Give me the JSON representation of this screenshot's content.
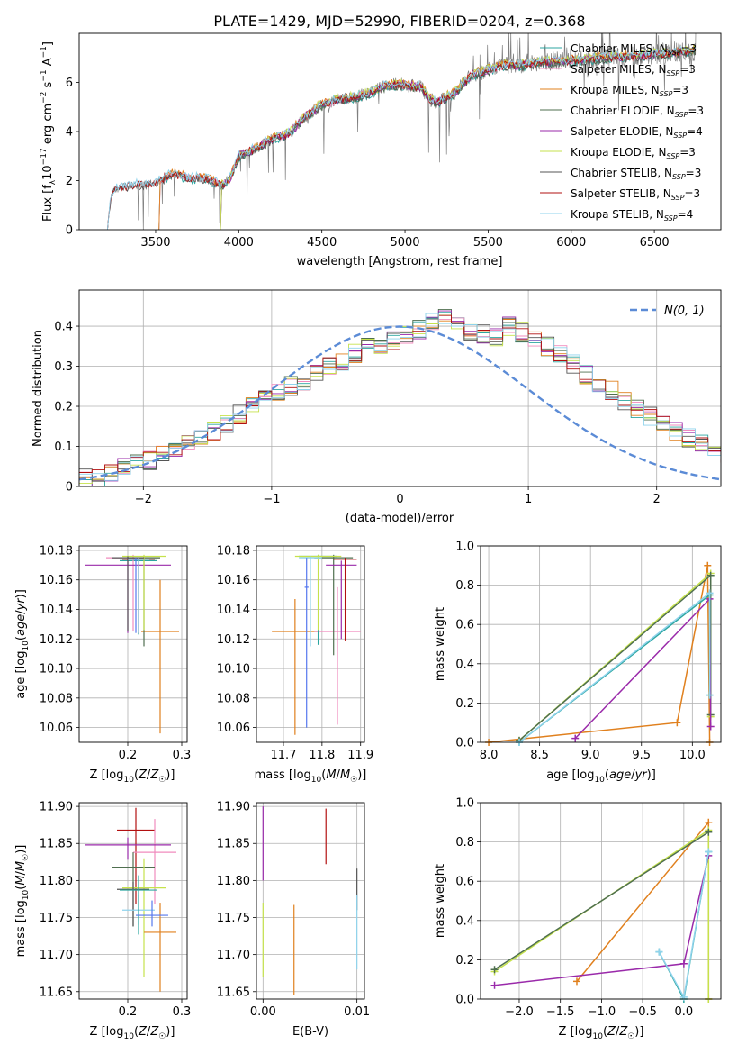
{
  "colors": {
    "Chabrier MILES": "#2ca6a0",
    "Salpeter MILES": "#f08bbd",
    "Kroupa MILES": "#e0801e",
    "Chabrier ELODIE": "#4f6f4f",
    "Salpeter ELODIE": "#9a2aaa",
    "Kroupa ELODIE": "#c6e24c",
    "Chabrier STELIB": "#555555",
    "Salpeter STELIB": "#b21010",
    "Kroupa STELIB": "#8fd3ec",
    "data": "#7f7f7f",
    "normal": "#5b8bd6",
    "orange_line": "#dd7733",
    "blue_extra": "#5577ee"
  },
  "chart_data": [
    {
      "type": "line",
      "title": "PLATE=1429, MJD=52990, FIBERID=0204, z=0.368",
      "xlabel": "wavelength [Angstrom, rest frame]",
      "ylabel": "Flux [f_λ 10^-17 erg cm^-2 s^-1 A^-1]",
      "xlim": [
        3040,
        6900
      ],
      "ylim": [
        0,
        8
      ],
      "xticks": [
        3500,
        4000,
        4500,
        5000,
        5500,
        6000,
        6500
      ],
      "yticks": [
        0,
        2,
        4,
        6
      ],
      "legend": "top-right",
      "legend_entries": [
        {
          "name": "Chabrier MILES",
          "nssp": "3"
        },
        {
          "name": "Salpeter MILES",
          "nssp": "3"
        },
        {
          "name": "Kroupa MILES",
          "nssp": "3"
        },
        {
          "name": "Chabrier ELODIE",
          "nssp": "3"
        },
        {
          "name": "Salpeter ELODIE",
          "nssp": "4"
        },
        {
          "name": "Kroupa ELODIE",
          "nssp": "3"
        },
        {
          "name": "Chabrier STELIB",
          "nssp": "3"
        },
        {
          "name": "Salpeter STELIB",
          "nssp": "3"
        },
        {
          "name": "Kroupa STELIB",
          "nssp": "4"
        }
      ],
      "model_start": {
        "Chabrier MILES": 3520,
        "Salpeter MILES": 3520,
        "Kroupa MILES": 3520,
        "Chabrier ELODIE": 3890,
        "Salpeter ELODIE": 3890,
        "Kroupa ELODIE": 3890,
        "Chabrier STELIB": 3210,
        "Salpeter STELIB": 3210,
        "Kroupa STELIB": 3210
      },
      "continuum": [
        [
          3210,
          0
        ],
        [
          3230,
          1.3
        ],
        [
          3250,
          1.6
        ],
        [
          3300,
          1.75
        ],
        [
          3400,
          1.85
        ],
        [
          3500,
          1.9
        ],
        [
          3600,
          2.3
        ],
        [
          3700,
          2.1
        ],
        [
          3800,
          2.1
        ],
        [
          3900,
          1.8
        ],
        [
          3950,
          2.1
        ],
        [
          4000,
          3.0
        ],
        [
          4100,
          3.3
        ],
        [
          4200,
          3.7
        ],
        [
          4300,
          3.9
        ],
        [
          4400,
          4.6
        ],
        [
          4500,
          5.1
        ],
        [
          4600,
          5.3
        ],
        [
          4700,
          5.4
        ],
        [
          4800,
          5.6
        ],
        [
          4900,
          5.9
        ],
        [
          5000,
          5.9
        ],
        [
          5100,
          5.8
        ],
        [
          5150,
          5.3
        ],
        [
          5200,
          5.2
        ],
        [
          5300,
          5.6
        ],
        [
          5400,
          6.3
        ],
        [
          5500,
          6.5
        ],
        [
          5600,
          6.7
        ],
        [
          5700,
          6.7
        ],
        [
          5800,
          6.8
        ],
        [
          6000,
          6.9
        ],
        [
          6200,
          7.0
        ],
        [
          6400,
          7.1
        ],
        [
          6600,
          7.2
        ],
        [
          6750,
          7.3
        ]
      ]
    },
    {
      "type": "line",
      "xlabel": "(data-model)/error",
      "ylabel": "Normed distribution",
      "xlim": [
        -2.5,
        2.5
      ],
      "ylim": [
        0,
        0.49
      ],
      "xticks": [
        -2,
        -1,
        0,
        1,
        2
      ],
      "yticks": [
        0.0,
        0.1,
        0.2,
        0.3,
        0.4
      ],
      "legend": "upper right",
      "normal_label": "N(0, 1)",
      "hist_mean": [
        0.02,
        0.025,
        0.035,
        0.045,
        0.055,
        0.065,
        0.08,
        0.095,
        0.11,
        0.125,
        0.14,
        0.16,
        0.18,
        0.2,
        0.215,
        0.23,
        0.25,
        0.265,
        0.285,
        0.3,
        0.315,
        0.33,
        0.345,
        0.355,
        0.365,
        0.375,
        0.39,
        0.41,
        0.43,
        0.415,
        0.39,
        0.38,
        0.37,
        0.4,
        0.385,
        0.37,
        0.35,
        0.33,
        0.305,
        0.28,
        0.26,
        0.24,
        0.215,
        0.195,
        0.175,
        0.155,
        0.135,
        0.12,
        0.105,
        0.09,
        0.075,
        0.065,
        0.055,
        0.045,
        0.035,
        0.03,
        0.025
      ],
      "bin_start": -2.5,
      "bin_width": 0.1
    },
    {
      "type": "scatter",
      "xlabel": "Z [log10(Z/Z☉)]",
      "ylabel": "age [log10(age/yr)]",
      "xlim": [
        0.11,
        0.31
      ],
      "ylim": [
        10.05,
        10.183
      ],
      "xticks": [
        0.2,
        0.3
      ],
      "xtick_labels": [
        "0.2",
        "0.3"
      ],
      "yticks": [
        10.06,
        10.08,
        10.1,
        10.12,
        10.14,
        10.16,
        10.18
      ],
      "ytick_labels": [
        "10.06",
        "10.08",
        "10.10",
        "10.12",
        "10.14",
        "10.16",
        "10.18"
      ],
      "points": [
        {
          "series": "Chabrier MILES",
          "x": 0.22,
          "y": 10.173,
          "xerr": 0.035,
          "yerr": [
            0.05,
            0.002
          ]
        },
        {
          "series": "Salpeter MILES",
          "x": 0.21,
          "y": 10.175,
          "xerr": 0.05,
          "yerr": [
            0.05,
            0.002
          ]
        },
        {
          "series": "Kroupa MILES",
          "x": 0.26,
          "y": 10.125,
          "xerr": 0.035,
          "yerr": [
            0.069,
            0.035
          ]
        },
        {
          "series": "Chabrier ELODIE",
          "x": 0.23,
          "y": 10.175,
          "xerr": 0.03,
          "yerr": [
            0.06,
            0.001
          ]
        },
        {
          "series": "Salpeter ELODIE",
          "x": 0.2,
          "y": 10.17,
          "xerr": 0.08,
          "yerr": [
            0.046,
            0.006
          ]
        },
        {
          "series": "Kroupa ELODIE",
          "x": 0.23,
          "y": 10.176,
          "xerr": 0.04,
          "yerr": [
            0.05,
            0.001
          ]
        },
        {
          "series": "Chabrier STELIB",
          "x": 0.2,
          "y": 10.175,
          "xerr": 0.03,
          "yerr": [
            0.05,
            0.001
          ]
        },
        {
          "series": "Salpeter STELIB",
          "x": 0.22,
          "y": 10.174,
          "xerr": 0.03,
          "yerr": [
            0.05,
            0.001
          ]
        },
        {
          "series": "Kroupa STELIB",
          "x": 0.22,
          "y": 10.174,
          "xerr": 0.02,
          "yerr": [
            0.05,
            0.001
          ]
        },
        {
          "series": "blue_extra",
          "x": 0.215,
          "y": 10.174,
          "xerr": 0.005,
          "yerr": [
            0.05,
            0.001
          ]
        }
      ]
    },
    {
      "type": "scatter",
      "xlabel": "mass [log10(M/M☉)]",
      "xlim": [
        11.63,
        11.91
      ],
      "ylim": [
        10.05,
        10.183
      ],
      "xticks": [
        11.7,
        11.8,
        11.9
      ],
      "xtick_labels": [
        "11.7",
        "11.8",
        "11.9"
      ],
      "yticks": [
        10.06,
        10.08,
        10.1,
        10.12,
        10.14,
        10.16,
        10.18
      ],
      "ytick_labels": [
        "10.06",
        "10.08",
        "10.10",
        "10.12",
        "10.14",
        "10.16",
        "10.18"
      ],
      "points": [
        {
          "series": "Kroupa MILES",
          "x": 11.73,
          "y": 10.125,
          "xerr": 0.06,
          "yerr": [
            0.07,
            0.022
          ]
        },
        {
          "series": "Salpeter MILES",
          "x": 11.84,
          "y": 10.125,
          "xerr": 0.06,
          "yerr": [
            0.063,
            0.03
          ]
        },
        {
          "series": "Chabrier MILES",
          "x": 11.79,
          "y": 10.176,
          "xerr": 0.05,
          "yerr": [
            0.06,
            0.001
          ]
        },
        {
          "series": "Chabrier ELODIE",
          "x": 11.83,
          "y": 10.175,
          "xerr": 0.05,
          "yerr": [
            0.066,
            0.002
          ]
        },
        {
          "series": "Salpeter ELODIE",
          "x": 11.85,
          "y": 10.17,
          "xerr": 0.04,
          "yerr": [
            0.05,
            0.003
          ]
        },
        {
          "series": "Kroupa ELODIE",
          "x": 11.79,
          "y": 10.176,
          "xerr": 0.06,
          "yerr": [
            0.05,
            0.001
          ]
        },
        {
          "series": "Salpeter STELIB",
          "x": 11.86,
          "y": 10.174,
          "xerr": 0.03,
          "yerr": [
            0.055,
            0.001
          ]
        },
        {
          "series": "Kroupa STELIB",
          "x": 11.77,
          "y": 10.175,
          "xerr": 0.03,
          "yerr": [
            0.06,
            0.001
          ]
        },
        {
          "series": "blue_extra",
          "x": 11.76,
          "y": 10.155,
          "xerr": 0.005,
          "yerr": [
            0.095,
            0.02
          ]
        }
      ]
    },
    {
      "type": "line",
      "xlabel": "age  [log10(age/yr)]",
      "ylabel": "mass weight",
      "xlim": [
        7.92,
        10.28
      ],
      "ylim": [
        0,
        1.0
      ],
      "xticks": [
        8.0,
        8.5,
        9.0,
        9.5,
        10.0
      ],
      "xtick_labels": [
        "8.0",
        "8.5",
        "9.0",
        "9.5",
        "10.0"
      ],
      "yticks": [
        0,
        0.2,
        0.4,
        0.6,
        0.8,
        1.0
      ],
      "ytick_labels": [
        "0.0",
        "0.2",
        "0.4",
        "0.6",
        "0.8",
        "1.0"
      ],
      "series": [
        {
          "name": "Kroupa MILES",
          "points": [
            [
              8.0,
              0.0
            ],
            [
              9.85,
              0.1
            ],
            [
              10.15,
              0.9
            ],
            [
              10.17,
              0.0
            ]
          ]
        },
        {
          "name": "Kroupa ELODIE",
          "points": [
            [
              8.3,
              0.01
            ],
            [
              10.18,
              0.86
            ],
            [
              10.18,
              0.13
            ]
          ]
        },
        {
          "name": "Chabrier ELODIE",
          "points": [
            [
              8.3,
              0.01
            ],
            [
              10.18,
              0.85
            ],
            [
              10.18,
              0.14
            ]
          ]
        },
        {
          "name": "Salpeter ELODIE",
          "points": [
            [
              8.85,
              0.02
            ],
            [
              10.17,
              0.73
            ],
            [
              10.18,
              0.08
            ]
          ]
        },
        {
          "name": "Chabrier MILES",
          "points": [
            [
              8.3,
              0.0
            ],
            [
              10.17,
              0.75
            ],
            [
              10.17,
              0.24
            ]
          ]
        },
        {
          "name": "Kroupa STELIB",
          "points": [
            [
              8.3,
              0.0
            ],
            [
              10.17,
              0.76
            ],
            [
              10.17,
              0.24
            ]
          ]
        }
      ]
    },
    {
      "type": "scatter",
      "xlabel": "Z [log10(Z/Z☉)]",
      "ylabel": "mass [log10(M/M☉)]",
      "xlim": [
        0.11,
        0.31
      ],
      "ylim": [
        11.64,
        11.905
      ],
      "xticks": [
        0.2,
        0.3
      ],
      "xtick_labels": [
        "0.2",
        "0.3"
      ],
      "yticks": [
        11.65,
        11.7,
        11.75,
        11.8,
        11.85,
        11.9
      ],
      "ytick_labels": [
        "11.65",
        "11.70",
        "11.75",
        "11.80",
        "11.85",
        "11.90"
      ],
      "points": [
        {
          "series": "Salpeter STELIB",
          "x": 0.215,
          "y": 11.868,
          "xerr": 0.035,
          "yerr": [
            0.1,
            0.03
          ]
        },
        {
          "series": "Salpeter MILES",
          "x": 0.25,
          "y": 11.838,
          "xerr": 0.04,
          "yerr": [
            0.07,
            0.045
          ]
        },
        {
          "series": "Salpeter ELODIE",
          "x": 0.2,
          "y": 11.848,
          "xerr": 0.08,
          "yerr": [
            0.02,
            0.01
          ]
        },
        {
          "series": "Chabrier ELODIE",
          "x": 0.21,
          "y": 11.818,
          "xerr": 0.04,
          "yerr": [
            0.08,
            0.02
          ]
        },
        {
          "series": "Kroupa ELODIE",
          "x": 0.23,
          "y": 11.79,
          "xerr": 0.04,
          "yerr": [
            0.12,
            0.04
          ]
        },
        {
          "series": "Chabrier STELIB",
          "x": 0.21,
          "y": 11.788,
          "xerr": 0.03,
          "yerr": [
            0.05,
            0.01
          ]
        },
        {
          "series": "Kroupa STELIB",
          "x": 0.22,
          "y": 11.76,
          "xerr": 0.03,
          "yerr": [
            0.02,
            0.02
          ]
        },
        {
          "series": "Kroupa MILES",
          "x": 0.26,
          "y": 11.73,
          "xerr": 0.03,
          "yerr": [
            0.08,
            0.04
          ]
        },
        {
          "series": "Chabrier MILES",
          "x": 0.22,
          "y": 11.787,
          "xerr": 0.035,
          "yerr": [
            0.06,
            0.02
          ]
        },
        {
          "series": "blue_extra",
          "x": 0.245,
          "y": 11.753,
          "xerr": 0.03,
          "yerr": [
            0.015,
            0.02
          ]
        }
      ]
    },
    {
      "type": "scatter",
      "xlabel": "E(B-V)",
      "xlim": [
        -0.0007,
        0.0108
      ],
      "ylim": [
        11.64,
        11.905
      ],
      "xticks": [
        0.0,
        0.01
      ],
      "xtick_labels": [
        "0.00",
        "0.01"
      ],
      "yticks": [
        11.65,
        11.7,
        11.75,
        11.8,
        11.85,
        11.9
      ],
      "ytick_labels": [
        "11.65",
        "11.70",
        "11.75",
        "11.80",
        "11.85",
        "11.90"
      ],
      "points": [
        {
          "series": "Salpeter ELODIE",
          "x": 0.0,
          "y": 11.85,
          "yerr": [
            0.05,
            0.05
          ]
        },
        {
          "series": "Kroupa ELODIE",
          "x": 0.0,
          "y": 11.72,
          "yerr": [
            0.05,
            0.05
          ]
        },
        {
          "series": "Kroupa MILES",
          "x": 0.0033,
          "y": 11.705,
          "yerr": [
            0.06,
            0.062
          ]
        },
        {
          "series": "Salpeter STELIB",
          "x": 0.0067,
          "y": 11.86,
          "yerr": [
            0.038,
            0.037
          ]
        },
        {
          "series": "Chabrier STELIB",
          "x": 0.01,
          "y": 11.79,
          "yerr": [
            0.03,
            0.026
          ]
        },
        {
          "series": "Kroupa STELIB",
          "x": 0.01,
          "y": 11.73,
          "yerr": [
            0.05,
            0.05
          ]
        }
      ]
    },
    {
      "type": "line",
      "xlabel": "Z [log10(Z/Z☉)]",
      "ylabel": "mass weight",
      "xlim": [
        -2.47,
        0.45
      ],
      "ylim": [
        0,
        1.0
      ],
      "xticks": [
        -2.0,
        -1.5,
        -1.0,
        -0.5,
        0.0
      ],
      "xtick_labels": [
        "−2.0",
        "−1.5",
        "−1.0",
        "−0.5",
        "0.0"
      ],
      "yticks": [
        0,
        0.2,
        0.4,
        0.6,
        0.8,
        1.0
      ],
      "ytick_labels": [
        "0.0",
        "0.2",
        "0.4",
        "0.6",
        "0.8",
        "1.0"
      ],
      "series": [
        {
          "name": "Kroupa MILES",
          "points": [
            [
              -1.3,
              0.09
            ],
            [
              0.3,
              0.9
            ],
            [
              0.3,
              0.0
            ]
          ]
        },
        {
          "name": "Kroupa ELODIE",
          "points": [
            [
              -2.3,
              0.14
            ],
            [
              0.3,
              0.86
            ],
            [
              0.3,
              0.0
            ]
          ]
        },
        {
          "name": "Chabrier ELODIE",
          "points": [
            [
              -2.3,
              0.15
            ],
            [
              0.3,
              0.85
            ]
          ]
        },
        {
          "name": "Salpeter ELODIE",
          "points": [
            [
              -2.3,
              0.07
            ],
            [
              0.0,
              0.18
            ],
            [
              0.3,
              0.73
            ]
          ]
        },
        {
          "name": "Chabrier MILES",
          "points": [
            [
              -0.3,
              0.24
            ],
            [
              0.0,
              0.0
            ],
            [
              0.3,
              0.75
            ]
          ]
        },
        {
          "name": "Kroupa STELIB",
          "points": [
            [
              -0.3,
              0.24
            ],
            [
              0.0,
              0.01
            ],
            [
              0.3,
              0.75
            ]
          ]
        }
      ]
    }
  ]
}
